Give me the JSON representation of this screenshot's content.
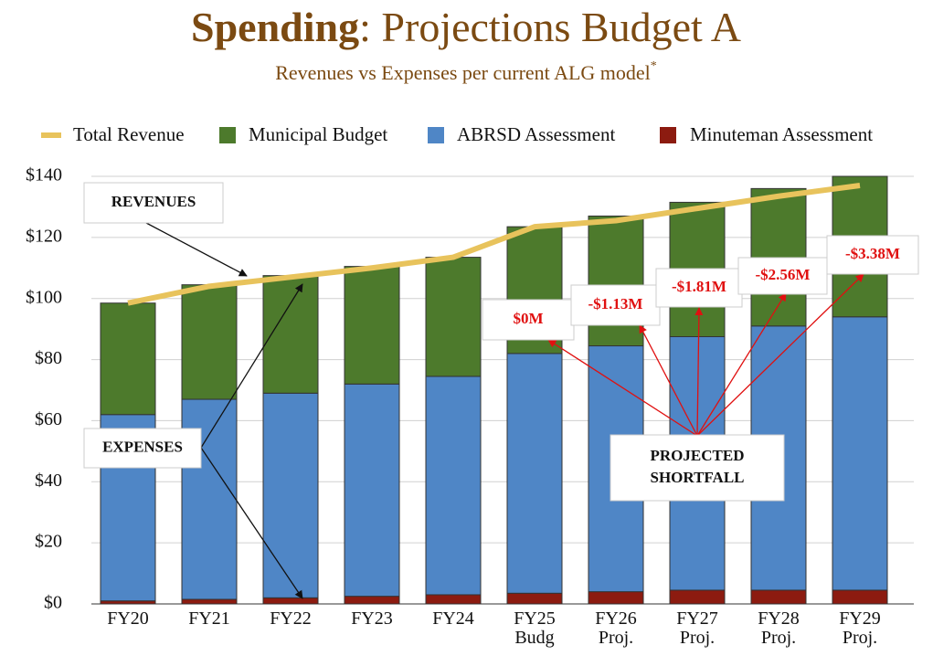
{
  "chart_data": {
    "type": "stacked-bar",
    "title": [
      "Spending",
      ": Projections Budget A"
    ],
    "subtitle": "Revenues vs Expenses per current ALG model",
    "subtitle_mark": "*",
    "categories": [
      "FY20",
      "FY21",
      "FY22",
      "FY23",
      "FY24",
      "FY25\nBudg",
      "FY26\nProj.",
      "FY27\nProj.",
      "FY28\nProj.",
      "FY29\nProj."
    ],
    "series": [
      {
        "name": "Total Revenue",
        "type": "line",
        "color": "#e8c35c",
        "values": [
          98.5,
          104,
          107,
          110,
          113.5,
          123.5,
          125.5,
          129.5,
          133.5,
          137
        ]
      },
      {
        "name": "Municipal Budget",
        "type": "bar",
        "color": "#4d7a2c",
        "values": [
          36.5,
          37.5,
          38.5,
          38.5,
          39,
          41.5,
          42.5,
          44,
          45,
          46
        ]
      },
      {
        "name": "ABRSD Assessment",
        "type": "bar",
        "color": "#4f86c6",
        "values": [
          61,
          65.5,
          67,
          69.5,
          71.5,
          78.5,
          80.5,
          83,
          86.5,
          89.5
        ]
      },
      {
        "name": "Minuteman Assessment",
        "type": "bar",
        "color": "#8c1b10",
        "values": [
          1,
          1.5,
          2,
          2.5,
          3,
          3.5,
          4,
          4.5,
          4.5,
          4.5
        ]
      }
    ],
    "ylim": [
      0,
      140
    ],
    "yticks": [
      {
        "value": 0,
        "label": "$0"
      },
      {
        "value": 20,
        "label": "$20"
      },
      {
        "value": 40,
        "label": "$40"
      },
      {
        "value": 60,
        "label": "$60"
      },
      {
        "value": 80,
        "label": "$80"
      },
      {
        "value": 100,
        "label": "$100"
      },
      {
        "value": 120,
        "label": "$120"
      },
      {
        "value": 140,
        "label": "$140"
      }
    ],
    "grid": true,
    "legend": "top",
    "annotations": [
      "REVENUES",
      "EXPENSES",
      "PROJECTED SHORTFALL",
      "$0M",
      "-$1.13M",
      "-$1.81M",
      "-$2.56M",
      "-$3.38M"
    ]
  }
}
